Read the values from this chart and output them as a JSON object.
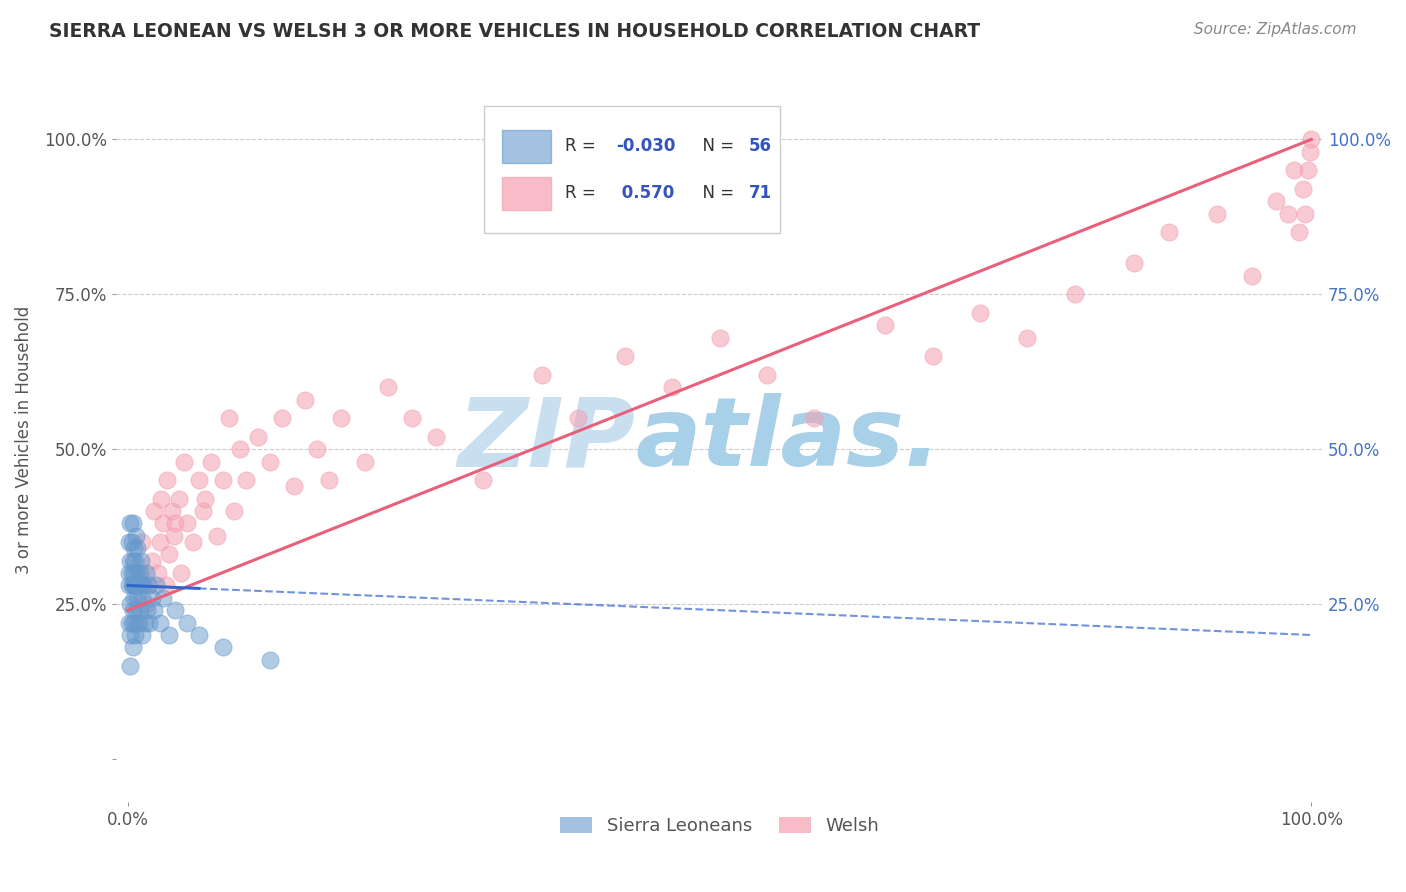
{
  "title": "SIERRA LEONEAN VS WELSH 3 OR MORE VEHICLES IN HOUSEHOLD CORRELATION CHART",
  "source": "Source: ZipAtlas.com",
  "ylabel": "3 or more Vehicles in Household",
  "sierra_leonean_color": "#6699cc",
  "welsh_color": "#f4a0b0",
  "sierra_leonean_line_color": "#3366cc",
  "welsh_line_color": "#e8607a",
  "grid_color": "#cccccc",
  "background_color": "#ffffff",
  "watermark_color": "#cce4f5",
  "sl_R": "-0.030",
  "sl_N": "56",
  "w_R": "0.570",
  "w_N": "71",
  "xlim": [
    -0.01,
    1.01
  ],
  "ylim": [
    -0.07,
    1.1
  ],
  "sierra_leonean_x": [
    0.001,
    0.001,
    0.001,
    0.001,
    0.002,
    0.002,
    0.002,
    0.002,
    0.002,
    0.003,
    0.003,
    0.003,
    0.003,
    0.004,
    0.004,
    0.004,
    0.004,
    0.004,
    0.005,
    0.005,
    0.005,
    0.005,
    0.006,
    0.006,
    0.006,
    0.007,
    0.007,
    0.007,
    0.008,
    0.008,
    0.008,
    0.009,
    0.009,
    0.01,
    0.01,
    0.011,
    0.011,
    0.012,
    0.012,
    0.013,
    0.014,
    0.015,
    0.016,
    0.017,
    0.018,
    0.02,
    0.022,
    0.024,
    0.027,
    0.03,
    0.035,
    0.04,
    0.05,
    0.06,
    0.08,
    0.12
  ],
  "sierra_leonean_y": [
    0.28,
    0.22,
    0.3,
    0.35,
    0.2,
    0.25,
    0.32,
    0.38,
    0.15,
    0.28,
    0.22,
    0.3,
    0.35,
    0.24,
    0.28,
    0.32,
    0.18,
    0.38,
    0.26,
    0.3,
    0.22,
    0.34,
    0.28,
    0.32,
    0.2,
    0.28,
    0.24,
    0.36,
    0.26,
    0.3,
    0.34,
    0.22,
    0.28,
    0.3,
    0.24,
    0.28,
    0.32,
    0.2,
    0.26,
    0.28,
    0.22,
    0.3,
    0.24,
    0.28,
    0.22,
    0.26,
    0.24,
    0.28,
    0.22,
    0.26,
    0.2,
    0.24,
    0.22,
    0.2,
    0.18,
    0.16
  ],
  "welsh_x": [
    0.005,
    0.008,
    0.01,
    0.012,
    0.015,
    0.018,
    0.02,
    0.022,
    0.025,
    0.027,
    0.028,
    0.03,
    0.032,
    0.033,
    0.035,
    0.037,
    0.039,
    0.04,
    0.043,
    0.045,
    0.047,
    0.05,
    0.055,
    0.06,
    0.063,
    0.065,
    0.07,
    0.075,
    0.08,
    0.085,
    0.09,
    0.095,
    0.1,
    0.11,
    0.12,
    0.13,
    0.14,
    0.15,
    0.16,
    0.17,
    0.18,
    0.2,
    0.22,
    0.24,
    0.26,
    0.3,
    0.35,
    0.38,
    0.42,
    0.46,
    0.5,
    0.54,
    0.58,
    0.64,
    0.68,
    0.72,
    0.76,
    0.8,
    0.85,
    0.88,
    0.92,
    0.95,
    0.97,
    0.98,
    0.985,
    0.99,
    0.993,
    0.995,
    0.997,
    0.999,
    1.0
  ],
  "welsh_y": [
    0.28,
    0.22,
    0.3,
    0.35,
    0.25,
    0.28,
    0.32,
    0.4,
    0.3,
    0.35,
    0.42,
    0.38,
    0.28,
    0.45,
    0.33,
    0.4,
    0.36,
    0.38,
    0.42,
    0.3,
    0.48,
    0.38,
    0.35,
    0.45,
    0.4,
    0.42,
    0.48,
    0.36,
    0.45,
    0.55,
    0.4,
    0.5,
    0.45,
    0.52,
    0.48,
    0.55,
    0.44,
    0.58,
    0.5,
    0.45,
    0.55,
    0.48,
    0.6,
    0.55,
    0.52,
    0.45,
    0.62,
    0.55,
    0.65,
    0.6,
    0.68,
    0.62,
    0.55,
    0.7,
    0.65,
    0.72,
    0.68,
    0.75,
    0.8,
    0.85,
    0.88,
    0.78,
    0.9,
    0.88,
    0.95,
    0.85,
    0.92,
    0.88,
    0.95,
    0.98,
    1.0
  ]
}
